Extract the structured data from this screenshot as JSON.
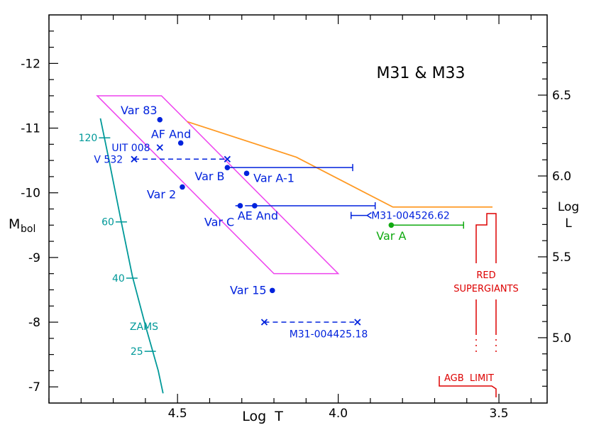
{
  "chart_data": {
    "type": "scatter",
    "title": "M31 & M33",
    "xlabel": "Log  T",
    "ylabel_main": "M",
    "ylabel_sub": "bol",
    "ylabel_right_top": "Log",
    "ylabel_right_bottom": "L",
    "xlim": [
      4.9,
      3.35
    ],
    "ylim": [
      -6.75,
      -12.75
    ],
    "x_ticks": [
      {
        "value": 4.5,
        "label": "4.5"
      },
      {
        "value": 4.0,
        "label": "4.0"
      },
      {
        "value": 3.5,
        "label": "3.5"
      }
    ],
    "y_ticks_left": [
      {
        "value": -12,
        "label": "-12"
      },
      {
        "value": -11,
        "label": "-11"
      },
      {
        "value": -10,
        "label": "-10"
      },
      {
        "value": -9,
        "label": "-9"
      },
      {
        "value": -8,
        "label": "-8"
      },
      {
        "value": -7,
        "label": "-7"
      }
    ],
    "y_ticks_right": [
      {
        "value": 6.5,
        "label": "6.5"
      },
      {
        "value": 6.0,
        "label": "6.0"
      },
      {
        "value": 5.5,
        "label": "5.5"
      },
      {
        "value": 5.0,
        "label": "5.0"
      }
    ],
    "colors": {
      "stars": "#0022dd",
      "var_a": "#11aa11",
      "zams": "#009999",
      "rsg": "#dd0000",
      "orange": "#ff9922",
      "magenta": "#ee44ee",
      "axis": "#000000"
    },
    "stars": [
      {
        "name": "Var 83",
        "x": 4.555,
        "y": -11.13,
        "marker": "dot",
        "label": "Var 83",
        "lx": 4.62,
        "ly": -11.27
      },
      {
        "name": "AF And",
        "x": 4.49,
        "y": -10.77,
        "marker": "dot",
        "label": "AF And",
        "lx": 4.52,
        "ly": -10.9
      },
      {
        "name": "UIT 008",
        "x": 4.555,
        "y": -10.7,
        "marker": "x",
        "label": "UIT 008",
        "lx": 4.645,
        "ly": -10.7
      },
      {
        "name": "V 532",
        "x": 4.635,
        "y": -10.52,
        "marker": "x",
        "label": "V 532",
        "lx": 4.715,
        "ly": -10.52
      },
      {
        "name": "Var B",
        "x": 4.345,
        "y": -10.39,
        "marker": "dot",
        "label": "Var B",
        "lx": 4.4,
        "ly": -10.25
      },
      {
        "name": "Var A-1",
        "x": 4.285,
        "y": -10.3,
        "marker": "dot",
        "label": "Var A-1",
        "lx": 4.2,
        "ly": -10.22
      },
      {
        "name": "Var 2",
        "x": 4.485,
        "y": -10.09,
        "marker": "dot",
        "label": "Var 2",
        "lx": 4.55,
        "ly": -9.97
      },
      {
        "name": "Var C",
        "x": 4.305,
        "y": -9.8,
        "marker": "dot",
        "label": "Var C",
        "lx": 4.37,
        "ly": -9.54
      },
      {
        "name": "AE And",
        "x": 4.26,
        "y": -9.8,
        "marker": "dot",
        "label": "AE And",
        "lx": 4.25,
        "ly": -9.64
      },
      {
        "name": "M31-004526.62",
        "x": 3.97,
        "y": -9.65,
        "marker": "none",
        "label": "M31-004526.62",
        "lx": 3.775,
        "ly": -9.65
      },
      {
        "name": "Var A",
        "x": 3.835,
        "y": -9.5,
        "marker": "dot",
        "label": "Var A",
        "lx": 3.835,
        "ly": -9.33
      },
      {
        "name": "Var 15",
        "x": 4.205,
        "y": -8.49,
        "marker": "dot",
        "label": "Var 15",
        "lx": 4.28,
        "ly": -8.49
      },
      {
        "name": "M31-004425.18",
        "x": 4.23,
        "y": -8.0,
        "marker": "x",
        "label": "M31-004425.18",
        "lx": 4.03,
        "ly": -7.82
      }
    ],
    "error_bars": [
      {
        "from": 4.345,
        "to": 3.955,
        "y": -10.39,
        "style": "solid",
        "color": "stars",
        "cap": "right"
      },
      {
        "from": 4.26,
        "to": 3.885,
        "y": -9.8,
        "style": "solid",
        "color": "stars",
        "cap": "right"
      },
      {
        "from": 4.29,
        "to": 4.26,
        "y": -9.8,
        "style": "solid",
        "color": "stars",
        "cap": "none"
      },
      {
        "from": 4.305,
        "to": 4.32,
        "y": -9.8,
        "style": "solid",
        "color": "stars",
        "cap": "none"
      },
      {
        "from": 3.835,
        "to": 3.61,
        "y": -9.5,
        "style": "solid",
        "color": "var_a",
        "cap": "right"
      },
      {
        "from": 4.635,
        "to": 4.345,
        "y": -10.52,
        "style": "dashed",
        "color": "stars",
        "cap": "x-right"
      },
      {
        "from": 4.23,
        "to": 3.94,
        "y": -8.0,
        "style": "dashed",
        "color": "stars",
        "cap": "x-right"
      }
    ],
    "arrow_004526": {
      "from": 3.91,
      "to": 3.96,
      "y": -9.65
    },
    "zams": {
      "label": "ZAMS",
      "points": [
        [
          4.74,
          -11.15
        ],
        [
          4.715,
          -10.55
        ],
        [
          4.675,
          -9.55
        ],
        [
          4.64,
          -8.7
        ],
        [
          4.6,
          -7.95
        ],
        [
          4.56,
          -7.25
        ],
        [
          4.545,
          -6.9
        ]
      ],
      "masses": [
        {
          "label": "120",
          "x": 4.727,
          "y": -10.85
        },
        {
          "label": "60",
          "x": 4.675,
          "y": -9.55
        },
        {
          "label": "40",
          "x": 4.642,
          "y": -8.68
        },
        {
          "label": "25",
          "x": 4.585,
          "y": -7.55
        }
      ]
    },
    "lbv_region": [
      [
        4.75,
        -11.5
      ],
      [
        4.55,
        -11.5
      ],
      [
        4.0,
        -8.75
      ],
      [
        4.2,
        -8.75
      ]
    ],
    "humphreys_davidson_limit": [
      [
        4.47,
        -11.1
      ],
      [
        4.13,
        -10.55
      ],
      [
        3.83,
        -9.78
      ],
      [
        3.52,
        -9.78
      ]
    ],
    "rsg_label_line1": "RED",
    "rsg_label_line2": "SUPERGIANTS",
    "agb_label": "AGB  LIMIT"
  }
}
